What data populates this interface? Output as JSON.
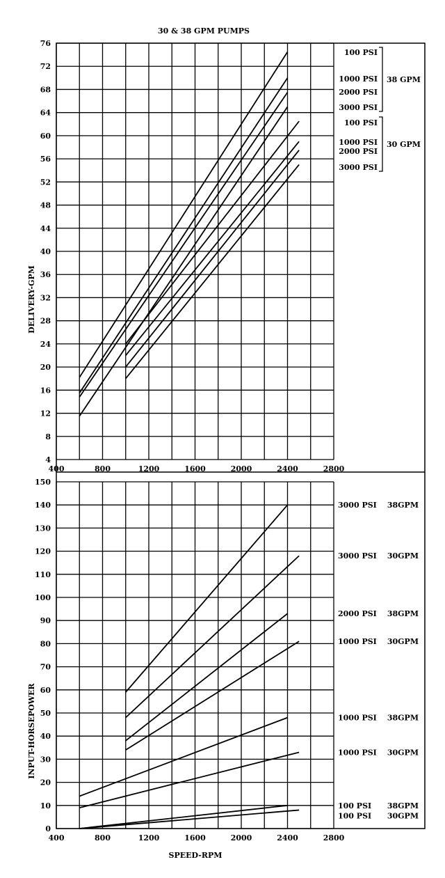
{
  "title": "30 & 38 GPM PUMPS",
  "xlabel": "SPEED-RPM",
  "chart_data": [
    {
      "type": "line",
      "title": "30 & 38 GPM PUMPS",
      "xlabel": "",
      "ylabel": "DELIVERY-GPM",
      "xlim": [
        400,
        2800
      ],
      "ylim": [
        4,
        76
      ],
      "x_ticks": [
        "400",
        "800",
        "1200",
        "1600",
        "2000",
        "2400",
        "2800"
      ],
      "y_ticks": [
        "4",
        "8",
        "12",
        "16",
        "20",
        "24",
        "28",
        "32",
        "36",
        "40",
        "44",
        "48",
        "52",
        "56",
        "60",
        "64",
        "68",
        "72",
        "76"
      ],
      "grid": true,
      "legend_groups": [
        {
          "name": "38 GPM",
          "items": [
            "100 PSI",
            "1000 PSI",
            "2000 PSI",
            "3000 PSI"
          ]
        },
        {
          "name": "30 GPM",
          "items": [
            "100 PSI",
            "1000 PSI",
            "2000 PSI",
            "3000 PSI"
          ]
        }
      ],
      "series": [
        {
          "x": [
            600,
            2400
          ],
          "y": [
            18.2,
            74.5
          ]
        },
        {
          "x": [
            600,
            2400
          ],
          "y": [
            15.5,
            70.0
          ]
        },
        {
          "x": [
            600,
            2400
          ],
          "y": [
            14.8,
            67.5
          ]
        },
        {
          "x": [
            600,
            2400
          ],
          "y": [
            11.5,
            65.0
          ]
        },
        {
          "x": [
            1000,
            2500
          ],
          "y": [
            24.0,
            62.5
          ]
        },
        {
          "x": [
            1000,
            2500
          ],
          "y": [
            22.0,
            59.0
          ]
        },
        {
          "x": [
            1000,
            2500
          ],
          "y": [
            20.0,
            57.5
          ]
        },
        {
          "x": [
            1000,
            2500
          ],
          "y": [
            18.0,
            55.0
          ]
        }
      ]
    },
    {
      "type": "line",
      "title": "",
      "xlabel": "SPEED-RPM",
      "ylabel": "INPUT-HORSEPOWER",
      "xlim": [
        400,
        2800
      ],
      "ylim": [
        0,
        150
      ],
      "x_ticks": [
        "400",
        "800",
        "1200",
        "1600",
        "2000",
        "2400",
        "2800"
      ],
      "y_ticks": [
        "0",
        "10",
        "20",
        "30",
        "40",
        "50",
        "60",
        "70",
        "80",
        "90",
        "100",
        "110",
        "120",
        "130",
        "140",
        "150"
      ],
      "grid": true,
      "series": [
        {
          "name": "3000 PSI 38GPM",
          "x": [
            1000,
            2400
          ],
          "y": [
            59,
            140
          ]
        },
        {
          "name": "3000 PSI 30GPM",
          "x": [
            1000,
            2500
          ],
          "y": [
            48,
            118
          ]
        },
        {
          "name": "2000 PSI 38GPM",
          "x": [
            1000,
            2400
          ],
          "y": [
            38,
            93
          ]
        },
        {
          "name": "1000 PSI 30GPM",
          "x": [
            1000,
            2500
          ],
          "y": [
            34,
            81
          ]
        },
        {
          "name": "1000 PSI 38GPM",
          "x": [
            600,
            2400
          ],
          "y": [
            14,
            48
          ]
        },
        {
          "name": "1000 PSI 30GPM",
          "x": [
            600,
            2500
          ],
          "y": [
            9,
            33
          ]
        },
        {
          "name": "100 PSI 38GPM",
          "x": [
            600,
            2400
          ],
          "y": [
            0,
            10
          ]
        },
        {
          "name": "100 PSI 30GPM",
          "x": [
            600,
            2500
          ],
          "y": [
            0,
            8
          ]
        }
      ],
      "line_labels": [
        {
          "pressure": "3000 PSI",
          "flow": "38GPM",
          "at": 140
        },
        {
          "pressure": "3000 PSI",
          "flow": "30GPM",
          "at": 118
        },
        {
          "pressure": "2000 PSI",
          "flow": "38GPM",
          "at": 93
        },
        {
          "pressure": "1000 PSI",
          "flow": "30GPM",
          "at": 81
        },
        {
          "pressure": "1000 PSI",
          "flow": "38GPM",
          "at": 48
        },
        {
          "pressure": "1000 PSI",
          "flow": "30GPM",
          "at": 33
        },
        {
          "pressure": "100 PSI",
          "flow": "38GPM",
          "at": 10
        },
        {
          "pressure": "100 PSI",
          "flow": "30GPM",
          "at": 5.5
        }
      ]
    }
  ]
}
